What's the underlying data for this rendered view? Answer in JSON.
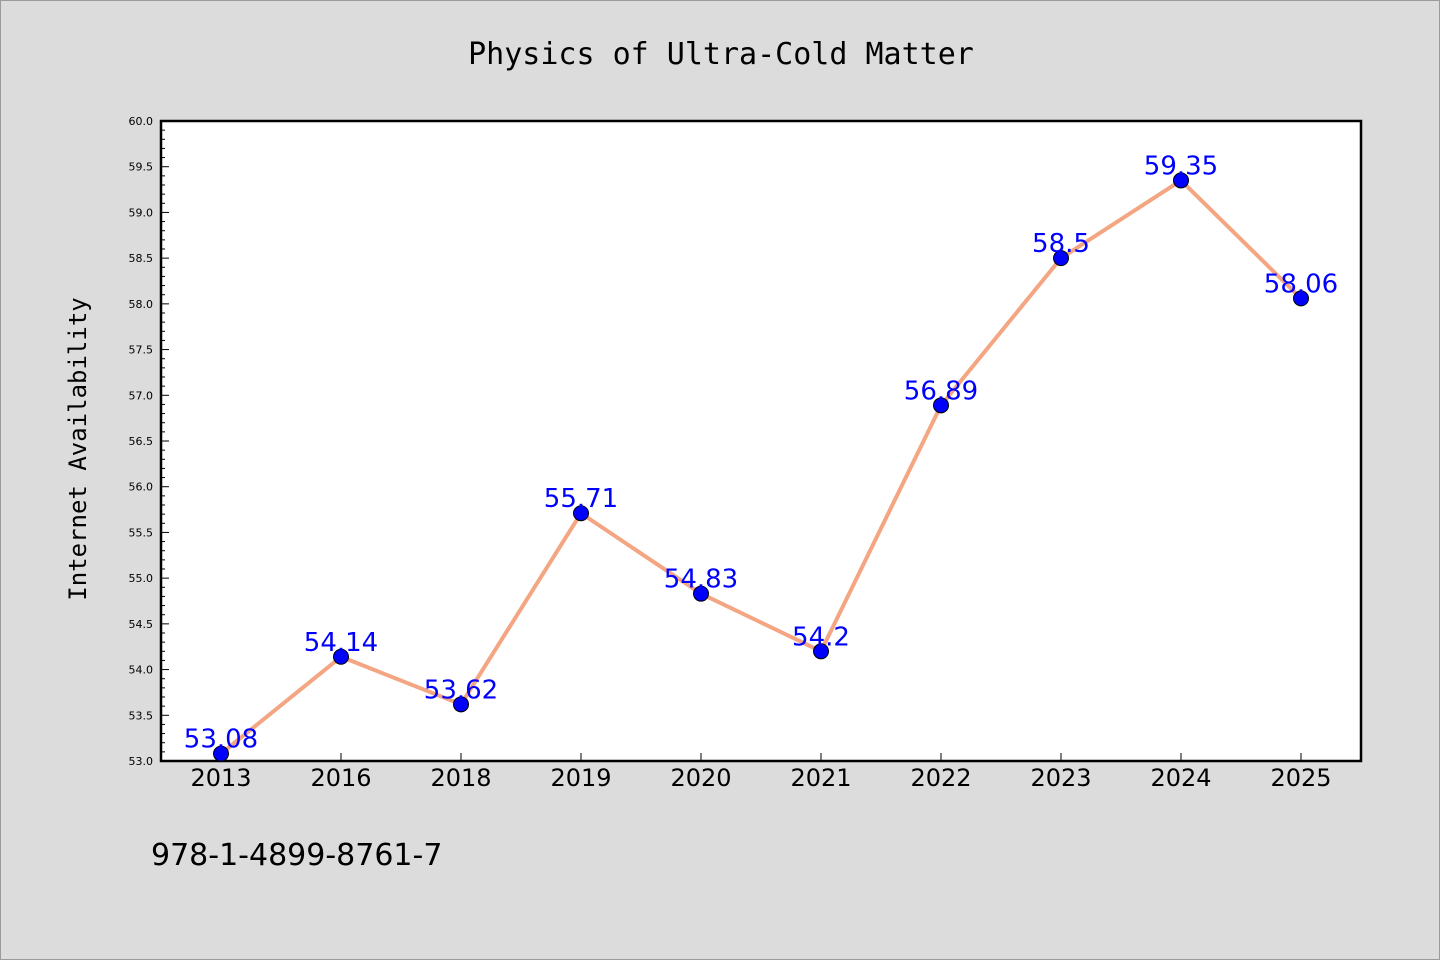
{
  "chart_data": {
    "type": "line",
    "title": "Physics of Ultra-Cold Matter",
    "xlabel": "",
    "ylabel": "Internet Availability",
    "categories": [
      "2013",
      "2016",
      "2018",
      "2019",
      "2020",
      "2021",
      "2022",
      "2023",
      "2024",
      "2025"
    ],
    "series": [
      {
        "values": [
          53.08,
          54.14,
          53.62,
          55.71,
          54.83,
          54.2,
          56.89,
          58.5,
          59.35,
          58.06
        ],
        "data_labels": [
          "53.08",
          "54.14",
          "53.62",
          "55.71",
          "54.83",
          "54.2",
          "56.89",
          "58.5",
          "59.35",
          "58.06"
        ],
        "line_color": "#f4a582",
        "marker_color": "#0000ff"
      }
    ],
    "ylim": [
      53.0,
      60.0
    ],
    "yticks": [
      "53.0",
      "53.5",
      "54.0",
      "54.5",
      "55.0",
      "55.5",
      "56.0",
      "56.5",
      "57.0",
      "57.5",
      "58.0",
      "58.5",
      "59.0",
      "59.5",
      "60.0"
    ],
    "grid": false,
    "legend": "none"
  },
  "annotation": {
    "isbn": "978-1-4899-8761-7"
  },
  "colors": {
    "background": "#dcdcdc",
    "plot_background": "#ffffff",
    "line": "#f4a582",
    "marker": "#0000ff",
    "label": "#0000ff"
  }
}
